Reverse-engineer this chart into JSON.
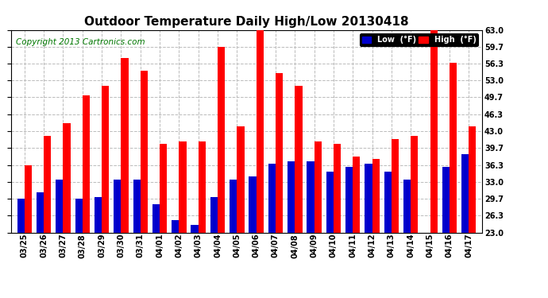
{
  "title": "Outdoor Temperature Daily High/Low 20130418",
  "copyright": "Copyright 2013 Cartronics.com",
  "legend_low": "Low  (°F)",
  "legend_high": "High  (°F)",
  "dates": [
    "03/25",
    "03/26",
    "03/27",
    "03/28",
    "03/29",
    "03/30",
    "03/31",
    "04/01",
    "04/02",
    "04/03",
    "04/04",
    "04/05",
    "04/06",
    "04/07",
    "04/08",
    "04/09",
    "04/10",
    "04/11",
    "04/12",
    "04/13",
    "04/14",
    "04/15",
    "04/16",
    "04/17"
  ],
  "highs": [
    36.3,
    42.0,
    44.5,
    50.0,
    52.0,
    57.5,
    55.0,
    40.5,
    41.0,
    41.0,
    59.7,
    44.0,
    63.0,
    54.5,
    52.0,
    41.0,
    40.5,
    38.0,
    37.5,
    41.5,
    42.0,
    63.0,
    56.5,
    44.0
  ],
  "lows": [
    29.7,
    31.0,
    33.5,
    29.7,
    30.0,
    33.5,
    33.5,
    28.5,
    25.5,
    24.5,
    30.0,
    33.5,
    34.0,
    36.5,
    37.0,
    37.0,
    35.0,
    36.0,
    36.5,
    35.0,
    33.5,
    23.0,
    36.0,
    38.5
  ],
  "bar_color_high": "#ff0000",
  "bar_color_low": "#0000cc",
  "bg_color": "#ffffff",
  "grid_color": "#bbbbbb",
  "ylim_min": 23.0,
  "ylim_max": 63.0,
  "yticks": [
    23.0,
    26.3,
    29.7,
    33.0,
    36.3,
    39.7,
    43.0,
    46.3,
    49.7,
    53.0,
    56.3,
    59.7,
    63.0
  ],
  "bar_width": 0.38,
  "title_fontsize": 11,
  "tick_fontsize": 7,
  "copyright_fontsize": 7.5
}
